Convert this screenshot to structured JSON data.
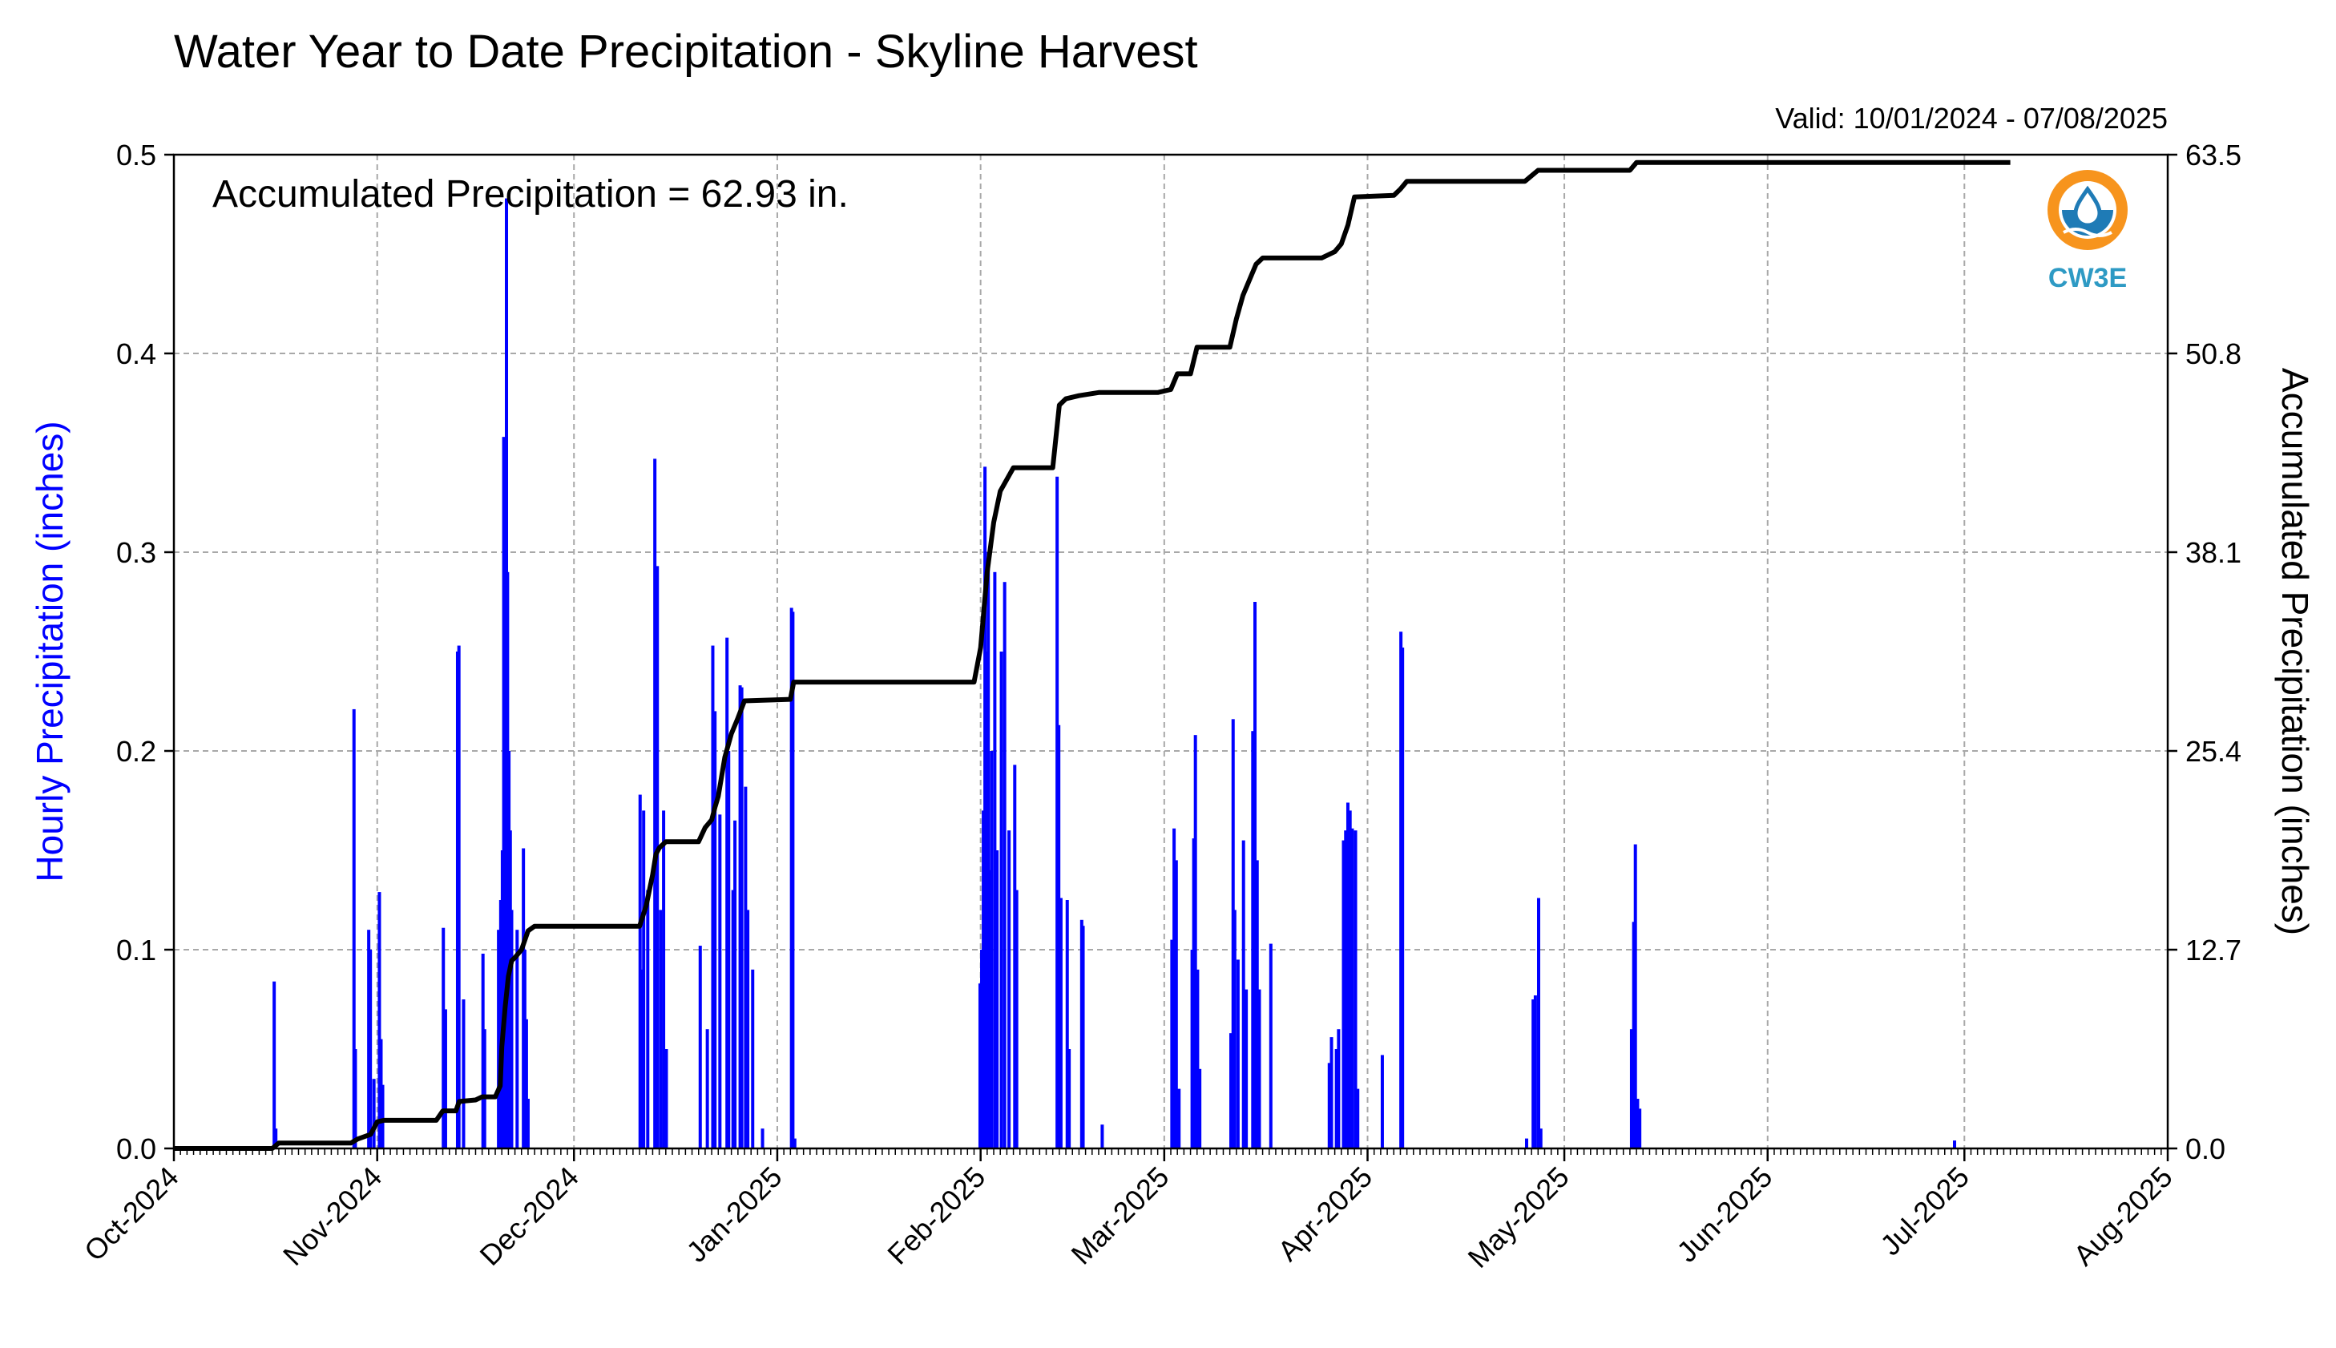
{
  "chart_data": {
    "type": "bar",
    "title": "Water Year to Date Precipitation - Skyline Harvest",
    "subtitle": "Valid: 10/01/2024 - 07/08/2025",
    "annotation": "Accumulated Precipitation = 62.93 in.",
    "logo_text": "CW3E",
    "ylabel": "Hourly Precipitation (inches)",
    "y2label": "Accumulated Precipitation (inches)",
    "ylim": [
      0,
      0.5
    ],
    "y2lim": [
      0,
      63.5
    ],
    "xlim": [
      "2024-10-01",
      "2025-08-01"
    ],
    "grid": true,
    "y_ticks": [
      "0.0",
      "0.1",
      "0.2",
      "0.3",
      "0.4",
      "0.5"
    ],
    "y2_ticks": [
      "0.0",
      "12.7",
      "25.4",
      "38.1",
      "50.8",
      "63.5"
    ],
    "x_ticks": [
      {
        "date": "2024-10-01",
        "label": "Oct-2024"
      },
      {
        "date": "2024-11-01",
        "label": "Nov-2024"
      },
      {
        "date": "2024-12-01",
        "label": "Dec-2024"
      },
      {
        "date": "2025-01-01",
        "label": "Jan-2025"
      },
      {
        "date": "2025-02-01",
        "label": "Feb-2025"
      },
      {
        "date": "2025-03-01",
        "label": "Mar-2025"
      },
      {
        "date": "2025-04-01",
        "label": "Apr-2025"
      },
      {
        "date": "2025-05-01",
        "label": "May-2025"
      },
      {
        "date": "2025-06-01",
        "label": "Jun-2025"
      },
      {
        "date": "2025-07-01",
        "label": "Jul-2025"
      },
      {
        "date": "2025-08-01",
        "label": "Aug-2025"
      }
    ],
    "series": [
      {
        "name": "Hourly Precipitation",
        "color": "#0000ff",
        "axis": "left",
        "type": "bar",
        "points": [
          [
            "2024-10-16T07:00",
            0.084
          ],
          [
            "2024-10-16T13:00",
            0.01
          ],
          [
            "2024-10-28T11:00",
            0.221
          ],
          [
            "2024-10-28T16:00",
            0.05
          ],
          [
            "2024-10-30T17:00",
            0.11
          ],
          [
            "2024-10-30T23:00",
            0.1
          ],
          [
            "2024-10-31T12:00",
            0.035
          ],
          [
            "2024-11-01T08:00",
            0.129
          ],
          [
            "2024-11-01T14:00",
            0.055
          ],
          [
            "2024-11-01T20:00",
            0.032
          ],
          [
            "2024-11-11T02:00",
            0.111
          ],
          [
            "2024-11-11T10:00",
            0.07
          ],
          [
            "2024-11-13T06:00",
            0.25
          ],
          [
            "2024-11-13T11:00",
            0.253
          ],
          [
            "2024-11-14T04:00",
            0.075
          ],
          [
            "2024-11-17T03:00",
            0.098
          ],
          [
            "2024-11-17T09:00",
            0.06
          ],
          [
            "2024-11-19T12:00",
            0.11
          ],
          [
            "2024-11-19T20:00",
            0.125
          ],
          [
            "2024-11-20T02:00",
            0.15
          ],
          [
            "2024-11-20T07:00",
            0.358
          ],
          [
            "2024-11-20T12:00",
            0.22
          ],
          [
            "2024-11-20T17:00",
            0.478
          ],
          [
            "2024-11-20T21:00",
            0.29
          ],
          [
            "2024-11-21T02:00",
            0.2
          ],
          [
            "2024-11-21T07:00",
            0.16
          ],
          [
            "2024-11-21T12:00",
            0.12
          ],
          [
            "2024-11-22T08:00",
            0.11
          ],
          [
            "2024-11-23T07:00",
            0.151
          ],
          [
            "2024-11-23T12:00",
            0.1
          ],
          [
            "2024-11-23T18:00",
            0.065
          ],
          [
            "2024-11-24T00:00",
            0.025
          ],
          [
            "2024-12-11T02:00",
            0.178
          ],
          [
            "2024-12-11T09:00",
            0.09
          ],
          [
            "2024-12-11T15:00",
            0.17
          ],
          [
            "2024-12-12T06:00",
            0.13
          ],
          [
            "2024-12-13T08:00",
            0.347
          ],
          [
            "2024-12-13T12:00",
            0.25
          ],
          [
            "2024-12-13T17:00",
            0.293
          ],
          [
            "2024-12-14T05:00",
            0.12
          ],
          [
            "2024-12-14T16:00",
            0.17
          ],
          [
            "2024-12-15T02:00",
            0.05
          ],
          [
            "2024-12-20T06:00",
            0.102
          ],
          [
            "2024-12-21T08:00",
            0.06
          ],
          [
            "2024-12-22T04:00",
            0.253
          ],
          [
            "2024-12-22T12:00",
            0.22
          ],
          [
            "2024-12-23T06:00",
            0.168
          ],
          [
            "2024-12-24T08:00",
            0.257
          ],
          [
            "2024-12-24T14:00",
            0.2
          ],
          [
            "2024-12-25T06:00",
            0.13
          ],
          [
            "2024-12-25T13:00",
            0.165
          ],
          [
            "2024-12-26T08:00",
            0.233
          ],
          [
            "2024-12-26T14:00",
            0.232
          ],
          [
            "2024-12-27T04:00",
            0.182
          ],
          [
            "2024-12-27T12:00",
            0.12
          ],
          [
            "2024-12-28T06:00",
            0.09
          ],
          [
            "2024-12-29T18:00",
            0.01
          ],
          [
            "2025-01-03T04:00",
            0.272
          ],
          [
            "2025-01-03T09:00",
            0.27
          ],
          [
            "2025-01-03T16:00",
            0.005
          ],
          [
            "2025-01-31T22:00",
            0.083
          ],
          [
            "2025-02-01T04:00",
            0.1
          ],
          [
            "2025-02-01T10:00",
            0.17
          ],
          [
            "2025-02-01T16:00",
            0.343
          ],
          [
            "2025-02-01T22:00",
            0.25
          ],
          [
            "2025-02-02T04:00",
            0.3
          ],
          [
            "2025-02-02T10:00",
            0.14
          ],
          [
            "2025-02-02T16:00",
            0.2
          ],
          [
            "2025-02-03T04:00",
            0.29
          ],
          [
            "2025-02-03T12:00",
            0.15
          ],
          [
            "2025-02-04T04:00",
            0.25
          ],
          [
            "2025-02-04T16:00",
            0.285
          ],
          [
            "2025-02-05T08:00",
            0.16
          ],
          [
            "2025-02-06T05:00",
            0.193
          ],
          [
            "2025-02-06T12:00",
            0.13
          ],
          [
            "2025-02-12T16:00",
            0.338
          ],
          [
            "2025-02-12T22:00",
            0.213
          ],
          [
            "2025-02-13T06:00",
            0.126
          ],
          [
            "2025-02-14T05:00",
            0.125
          ],
          [
            "2025-02-14T12:00",
            0.05
          ],
          [
            "2025-02-16T10:00",
            0.115
          ],
          [
            "2025-02-16T15:00",
            0.112
          ],
          [
            "2025-02-19T13:00",
            0.012
          ],
          [
            "2025-03-02T04:00",
            0.105
          ],
          [
            "2025-03-02T12:00",
            0.161
          ],
          [
            "2025-03-02T20:00",
            0.145
          ],
          [
            "2025-03-03T06:00",
            0.03
          ],
          [
            "2025-03-05T06:00",
            0.1
          ],
          [
            "2025-03-05T12:00",
            0.156
          ],
          [
            "2025-03-05T18:00",
            0.208
          ],
          [
            "2025-03-06T02:00",
            0.09
          ],
          [
            "2025-03-06T10:00",
            0.04
          ],
          [
            "2025-03-11T04:00",
            0.058
          ],
          [
            "2025-03-11T12:00",
            0.216
          ],
          [
            "2025-03-11T18:00",
            0.12
          ],
          [
            "2025-03-12T06:00",
            0.095
          ],
          [
            "2025-03-13T02:00",
            0.155
          ],
          [
            "2025-03-13T12:00",
            0.08
          ],
          [
            "2025-03-14T12:00",
            0.21
          ],
          [
            "2025-03-14T20:00",
            0.275
          ],
          [
            "2025-03-15T04:00",
            0.145
          ],
          [
            "2025-03-15T12:00",
            0.08
          ],
          [
            "2025-03-17T06:00",
            0.103
          ],
          [
            "2025-03-26T04:00",
            0.043
          ],
          [
            "2025-03-26T12:00",
            0.056
          ],
          [
            "2025-03-27T06:00",
            0.05
          ],
          [
            "2025-03-27T14:00",
            0.06
          ],
          [
            "2025-03-28T08:00",
            0.155
          ],
          [
            "2025-03-28T16:00",
            0.16
          ],
          [
            "2025-03-29T00:00",
            0.174
          ],
          [
            "2025-03-29T08:00",
            0.17
          ],
          [
            "2025-03-29T16:00",
            0.161
          ],
          [
            "2025-03-30T04:00",
            0.16
          ],
          [
            "2025-03-30T12:00",
            0.03
          ],
          [
            "2025-04-03T06:00",
            0.047
          ],
          [
            "2025-04-06T02:00",
            0.26
          ],
          [
            "2025-04-06T08:00",
            0.252
          ],
          [
            "2025-04-25T06:00",
            0.005
          ],
          [
            "2025-04-26T06:00",
            0.075
          ],
          [
            "2025-04-26T14:00",
            0.077
          ],
          [
            "2025-04-27T02:00",
            0.126
          ],
          [
            "2025-04-27T10:00",
            0.01
          ],
          [
            "2025-05-11T06:00",
            0.06
          ],
          [
            "2025-05-11T14:00",
            0.114
          ],
          [
            "2025-05-11T20:00",
            0.153
          ],
          [
            "2025-05-12T04:00",
            0.025
          ],
          [
            "2025-05-12T12:00",
            0.02
          ],
          [
            "2025-06-29T12:00",
            0.004
          ]
        ]
      },
      {
        "name": "Accumulated Precipitation",
        "color": "#000000",
        "axis": "right",
        "type": "line",
        "points": [
          [
            "2024-10-01",
            0.0
          ],
          [
            "2024-10-16",
            0.0
          ],
          [
            "2024-10-17",
            0.35
          ],
          [
            "2024-10-28",
            0.35
          ],
          [
            "2024-10-29",
            0.6
          ],
          [
            "2024-10-31",
            0.9
          ],
          [
            "2024-11-01",
            1.7
          ],
          [
            "2024-11-02",
            1.8
          ],
          [
            "2024-11-10",
            1.8
          ],
          [
            "2024-11-11",
            2.4
          ],
          [
            "2024-11-13",
            2.4
          ],
          [
            "2024-11-13T12:00",
            3.0
          ],
          [
            "2024-11-16",
            3.1
          ],
          [
            "2024-11-17",
            3.3
          ],
          [
            "2024-11-19",
            3.3
          ],
          [
            "2024-11-19T18:00",
            4.0
          ],
          [
            "2024-11-20",
            6.5
          ],
          [
            "2024-11-20T12:00",
            9.0
          ],
          [
            "2024-11-21",
            11.0
          ],
          [
            "2024-11-21T12:00",
            12.0
          ],
          [
            "2024-11-22",
            12.2
          ],
          [
            "2024-11-23",
            12.7
          ],
          [
            "2024-11-24",
            13.9
          ],
          [
            "2024-11-25",
            14.2
          ],
          [
            "2024-12-11",
            14.2
          ],
          [
            "2024-12-12",
            15.5
          ],
          [
            "2024-12-13",
            17.5
          ],
          [
            "2024-12-13T12:00",
            18.8
          ],
          [
            "2024-12-14",
            19.2
          ],
          [
            "2024-12-15",
            19.6
          ],
          [
            "2024-12-20",
            19.6
          ],
          [
            "2024-12-21",
            20.5
          ],
          [
            "2024-12-22",
            21.0
          ],
          [
            "2024-12-22T12:00",
            21.8
          ],
          [
            "2024-12-23",
            22.5
          ],
          [
            "2024-12-24",
            25.0
          ],
          [
            "2024-12-25",
            26.5
          ],
          [
            "2024-12-26",
            27.5
          ],
          [
            "2024-12-27",
            28.6
          ],
          [
            "2025-01-03",
            28.7
          ],
          [
            "2025-01-03T12:00",
            29.8
          ],
          [
            "2025-01-31",
            29.8
          ],
          [
            "2025-02-01",
            32.0
          ],
          [
            "2025-02-02",
            36.8
          ],
          [
            "2025-02-03",
            40.0
          ],
          [
            "2025-02-04",
            42.0
          ],
          [
            "2025-02-06",
            43.5
          ],
          [
            "2025-02-12",
            43.5
          ],
          [
            "2025-02-13",
            47.5
          ],
          [
            "2025-02-14",
            47.9
          ],
          [
            "2025-02-16",
            48.1
          ],
          [
            "2025-02-19",
            48.3
          ],
          [
            "2025-02-28",
            48.3
          ],
          [
            "2025-03-02",
            48.5
          ],
          [
            "2025-03-03",
            49.5
          ],
          [
            "2025-03-05",
            49.5
          ],
          [
            "2025-03-06",
            51.2
          ],
          [
            "2025-03-11",
            51.2
          ],
          [
            "2025-03-12",
            53.0
          ],
          [
            "2025-03-13",
            54.5
          ],
          [
            "2025-03-14",
            55.5
          ],
          [
            "2025-03-15",
            56.5
          ],
          [
            "2025-03-16",
            56.9
          ],
          [
            "2025-03-25",
            56.9
          ],
          [
            "2025-03-27",
            57.3
          ],
          [
            "2025-03-28",
            57.8
          ],
          [
            "2025-03-29",
            59.0
          ],
          [
            "2025-03-30",
            60.8
          ],
          [
            "2025-04-05",
            60.9
          ],
          [
            "2025-04-06",
            61.3
          ],
          [
            "2025-04-07",
            61.8
          ],
          [
            "2025-04-25",
            61.8
          ],
          [
            "2025-04-27",
            62.5
          ],
          [
            "2025-05-11",
            62.5
          ],
          [
            "2025-05-12",
            63.0
          ],
          [
            "2025-06-29",
            63.0
          ],
          [
            "2025-07-08",
            63.0
          ]
        ]
      }
    ]
  }
}
